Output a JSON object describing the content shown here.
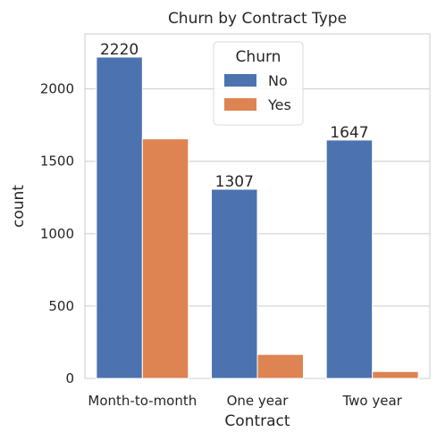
{
  "chart_data": {
    "type": "bar",
    "title": "Churn by Contract Type",
    "xlabel": "Contract",
    "ylabel": "count",
    "categories": [
      "Month-to-month",
      "One year",
      "Two year"
    ],
    "series": [
      {
        "name": "No",
        "values": [
          2220,
          1307,
          1647
        ],
        "color": "#4c72b0"
      },
      {
        "name": "Yes",
        "values": [
          1655,
          166,
          48
        ],
        "color": "#dd8452"
      }
    ],
    "data_labels": [
      "2220",
      "1307",
      "1647"
    ],
    "ylim": [
      0,
      2380
    ],
    "yticks": [
      0,
      500,
      1000,
      1500,
      2000
    ],
    "grid": true,
    "legend": {
      "title": "Churn",
      "placement": "top-center"
    }
  }
}
